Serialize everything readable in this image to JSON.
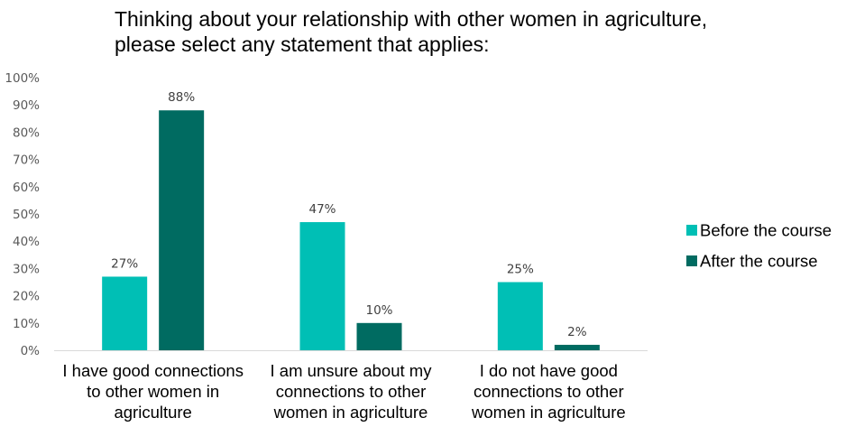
{
  "chart_data": {
    "type": "bar",
    "title_lines": [
      "Thinking about your relationship with other women in agriculture,",
      "please select any statement that applies:"
    ],
    "categories": [
      [
        "I have good connections",
        "to other women in",
        "agriculture"
      ],
      [
        "I am unsure about my",
        "connections to other",
        "women in agriculture"
      ],
      [
        "I do not have good",
        "connections to other",
        "women in agriculture"
      ]
    ],
    "series": [
      {
        "name": "Before the course",
        "color": "#00BFB5",
        "values": [
          27,
          47,
          25
        ],
        "labels": [
          "27%",
          "47%",
          "25%"
        ]
      },
      {
        "name": "After the course",
        "color": "#006B61",
        "values": [
          88,
          10,
          2
        ],
        "labels": [
          "88%",
          "10%",
          "2%"
        ]
      }
    ],
    "yticks": [
      "0%",
      "10%",
      "20%",
      "30%",
      "40%",
      "50%",
      "60%",
      "70%",
      "80%",
      "90%",
      "100%"
    ],
    "ylim": [
      0,
      100
    ],
    "grid": false,
    "legend_position": "right"
  }
}
